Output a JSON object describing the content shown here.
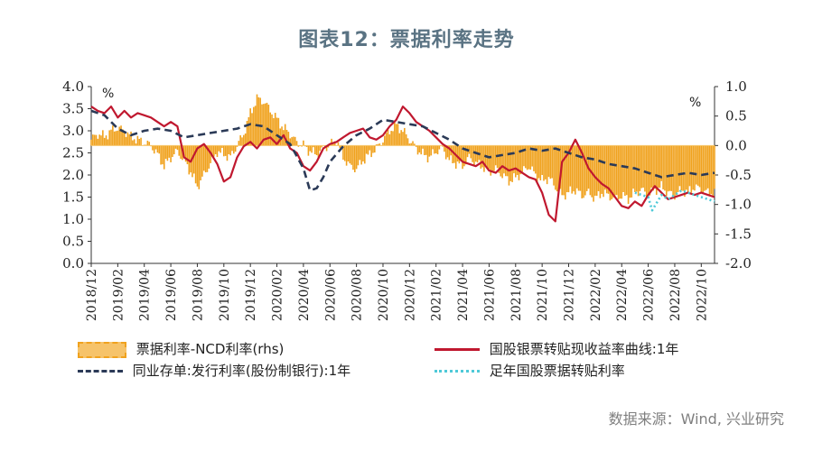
{
  "title": "图表12：票据利率走势",
  "source": "数据来源：Wind, 兴业研究",
  "chart_data": {
    "type": "line",
    "left_axis": {
      "unit": "%",
      "min": 0.0,
      "max": 4.0,
      "ticks": [
        "4.0",
        "3.5",
        "3.0",
        "2.5",
        "2.0",
        "1.5",
        "1.0",
        "0.5",
        "0.0"
      ]
    },
    "right_axis": {
      "unit": "%",
      "min": -2.0,
      "max": 1.0,
      "ticks": [
        "1.0",
        "0.5",
        "0.0",
        "-0.5",
        "-1.0",
        "-1.5",
        "-2.0"
      ]
    },
    "x_axis": {
      "start": "2018/12",
      "end": "2022/11",
      "tick_labels": [
        "2018/12",
        "2019/02",
        "2019/04",
        "2019/06",
        "2019/08",
        "2019/10",
        "2019/12",
        "2020/02",
        "2020/04",
        "2020/06",
        "2020/08",
        "2020/10",
        "2020/12",
        "2021/02",
        "2021/04",
        "2021/06",
        "2021/08",
        "2021/10",
        "2021/12",
        "2022/02",
        "2022/04",
        "2022/06",
        "2022/08",
        "2022/10"
      ]
    },
    "series": [
      {
        "name": "票据利率-NCD利率(rhs)",
        "style": "area",
        "axis": "right",
        "color": "#f0a21e",
        "points": [
          [
            0,
            0.1
          ],
          [
            0.5,
            0.2
          ],
          [
            1,
            0.15
          ],
          [
            1.5,
            0.25
          ],
          [
            2,
            0.3
          ],
          [
            2.5,
            0.25
          ],
          [
            3,
            0.15
          ],
          [
            3.5,
            0.1
          ],
          [
            4,
            0.05
          ],
          [
            4.5,
            0.0
          ],
          [
            5,
            -0.15
          ],
          [
            5.5,
            -0.35
          ],
          [
            6,
            -0.2
          ],
          [
            6.5,
            -0.1
          ],
          [
            7,
            -0.25
          ],
          [
            7.5,
            -0.45
          ],
          [
            8,
            -0.7
          ],
          [
            8.5,
            -0.5
          ],
          [
            9,
            -0.3
          ],
          [
            9.5,
            -0.1
          ],
          [
            10,
            -0.15
          ],
          [
            10.5,
            -0.2
          ],
          [
            11,
            0.0
          ],
          [
            11.5,
            0.2
          ],
          [
            12,
            0.55
          ],
          [
            12.5,
            0.8
          ],
          [
            13,
            0.75
          ],
          [
            13.5,
            0.6
          ],
          [
            14,
            0.45
          ],
          [
            14.5,
            0.3
          ],
          [
            15,
            0.2
          ],
          [
            15.5,
            0.05
          ],
          [
            16,
            0.0
          ],
          [
            16.5,
            -0.1
          ],
          [
            17,
            -0.15
          ],
          [
            17.5,
            -0.05
          ],
          [
            18,
            0.0
          ],
          [
            18.5,
            0.1
          ],
          [
            19,
            -0.2
          ],
          [
            19.5,
            -0.35
          ],
          [
            20,
            -0.4
          ],
          [
            20.5,
            -0.25
          ],
          [
            21,
            -0.15
          ],
          [
            21.5,
            -0.05
          ],
          [
            22,
            0.1
          ],
          [
            22.5,
            0.25
          ],
          [
            23,
            0.35
          ],
          [
            23.5,
            0.25
          ],
          [
            24,
            0.1
          ],
          [
            24.5,
            -0.05
          ],
          [
            25,
            -0.15
          ],
          [
            25.5,
            -0.2
          ],
          [
            26,
            -0.1
          ],
          [
            26.5,
            -0.05
          ],
          [
            27,
            -0.25
          ],
          [
            27.5,
            -0.3
          ],
          [
            28,
            -0.35
          ],
          [
            28.5,
            -0.2
          ],
          [
            29,
            -0.3
          ],
          [
            29.5,
            -0.35
          ],
          [
            30,
            -0.45
          ],
          [
            30.5,
            -0.4
          ],
          [
            31,
            -0.5
          ],
          [
            31.5,
            -0.6
          ],
          [
            32,
            -0.55
          ],
          [
            32.5,
            -0.45
          ],
          [
            33,
            -0.35
          ],
          [
            33.5,
            -0.5
          ],
          [
            34,
            -0.6
          ],
          [
            34.5,
            -0.55
          ],
          [
            35,
            -0.7
          ],
          [
            35.5,
            -0.85
          ],
          [
            36,
            -0.8
          ],
          [
            36.5,
            -0.75
          ],
          [
            37,
            -0.85
          ],
          [
            37.5,
            -0.8
          ],
          [
            38,
            -0.9
          ],
          [
            38.5,
            -0.8
          ],
          [
            39,
            -0.85
          ],
          [
            39.5,
            -0.9
          ],
          [
            40,
            -0.85
          ],
          [
            40.5,
            -0.9
          ],
          [
            41,
            -0.8
          ],
          [
            41.5,
            -0.75
          ],
          [
            42,
            -0.85
          ],
          [
            42.5,
            -0.75
          ],
          [
            43,
            -0.7
          ],
          [
            43.5,
            -0.8
          ],
          [
            44,
            -0.85
          ],
          [
            44.5,
            -0.75
          ],
          [
            45,
            -0.8
          ],
          [
            45.5,
            -0.7
          ],
          [
            46,
            -0.75
          ],
          [
            46.5,
            -0.8
          ],
          [
            47,
            -0.8
          ]
        ]
      },
      {
        "name": "国股银票转贴现收益率曲线:1年",
        "style": "solid",
        "axis": "left",
        "color": "#c0182f",
        "points": [
          [
            0,
            3.55
          ],
          [
            0.5,
            3.45
          ],
          [
            1,
            3.4
          ],
          [
            1.5,
            3.55
          ],
          [
            2,
            3.3
          ],
          [
            2.5,
            3.45
          ],
          [
            3,
            3.3
          ],
          [
            3.5,
            3.4
          ],
          [
            4,
            3.35
          ],
          [
            4.5,
            3.3
          ],
          [
            5,
            3.2
          ],
          [
            5.5,
            3.1
          ],
          [
            6,
            3.2
          ],
          [
            6.5,
            3.1
          ],
          [
            7,
            2.4
          ],
          [
            7.5,
            2.3
          ],
          [
            8,
            2.6
          ],
          [
            8.5,
            2.7
          ],
          [
            9,
            2.5
          ],
          [
            9.5,
            2.25
          ],
          [
            10,
            1.85
          ],
          [
            10.5,
            1.95
          ],
          [
            11,
            2.4
          ],
          [
            11.5,
            2.65
          ],
          [
            12,
            2.75
          ],
          [
            12.5,
            2.6
          ],
          [
            13,
            2.8
          ],
          [
            13.5,
            2.85
          ],
          [
            14,
            2.7
          ],
          [
            14.5,
            2.9
          ],
          [
            15,
            2.6
          ],
          [
            15.5,
            2.5
          ],
          [
            16,
            2.2
          ],
          [
            16.5,
            2.1
          ],
          [
            17,
            2.3
          ],
          [
            17.5,
            2.6
          ],
          [
            18,
            2.7
          ],
          [
            18.5,
            2.75
          ],
          [
            19,
            2.85
          ],
          [
            19.5,
            2.95
          ],
          [
            20,
            3.0
          ],
          [
            20.5,
            3.05
          ],
          [
            21,
            2.85
          ],
          [
            21.5,
            2.8
          ],
          [
            22,
            2.9
          ],
          [
            22.5,
            3.1
          ],
          [
            23,
            3.25
          ],
          [
            23.5,
            3.55
          ],
          [
            24,
            3.4
          ],
          [
            24.5,
            3.2
          ],
          [
            25,
            3.1
          ],
          [
            25.5,
            3.0
          ],
          [
            26,
            2.85
          ],
          [
            26.5,
            2.7
          ],
          [
            27,
            2.6
          ],
          [
            27.5,
            2.45
          ],
          [
            28,
            2.3
          ],
          [
            28.5,
            2.25
          ],
          [
            29,
            2.2
          ],
          [
            29.5,
            2.3
          ],
          [
            30,
            2.1
          ],
          [
            30.5,
            2.05
          ],
          [
            31,
            2.2
          ],
          [
            31.5,
            2.1
          ],
          [
            32,
            2.15
          ],
          [
            32.5,
            2.05
          ],
          [
            33,
            1.95
          ],
          [
            33.5,
            1.9
          ],
          [
            34,
            1.6
          ],
          [
            34.5,
            1.1
          ],
          [
            35,
            0.95
          ],
          [
            35.5,
            2.3
          ],
          [
            36,
            2.5
          ],
          [
            36.5,
            2.8
          ],
          [
            37,
            2.5
          ],
          [
            37.5,
            2.15
          ],
          [
            38,
            1.95
          ],
          [
            38.5,
            1.8
          ],
          [
            39,
            1.7
          ],
          [
            39.5,
            1.5
          ],
          [
            40,
            1.3
          ],
          [
            40.5,
            1.25
          ],
          [
            41,
            1.4
          ],
          [
            41.5,
            1.3
          ],
          [
            42,
            1.55
          ],
          [
            42.5,
            1.75
          ],
          [
            43,
            1.6
          ],
          [
            43.5,
            1.45
          ],
          [
            44,
            1.5
          ],
          [
            44.5,
            1.55
          ],
          [
            45,
            1.6
          ],
          [
            45.5,
            1.55
          ],
          [
            46,
            1.6
          ],
          [
            46.5,
            1.55
          ],
          [
            47,
            1.5
          ]
        ]
      },
      {
        "name": "同业存单:发行利率(股份制银行):1年",
        "style": "dashed",
        "axis": "left",
        "color": "#2b3a57",
        "points": [
          [
            0,
            3.45
          ],
          [
            1,
            3.35
          ],
          [
            2,
            3.05
          ],
          [
            3,
            2.9
          ],
          [
            4,
            3.0
          ],
          [
            5,
            3.05
          ],
          [
            6,
            3.0
          ],
          [
            7,
            2.85
          ],
          [
            8,
            2.9
          ],
          [
            9,
            2.95
          ],
          [
            10,
            3.0
          ],
          [
            11,
            3.05
          ],
          [
            12,
            3.15
          ],
          [
            13,
            3.1
          ],
          [
            14,
            2.9
          ],
          [
            15,
            2.7
          ],
          [
            16,
            2.15
          ],
          [
            16.5,
            1.65
          ],
          [
            17,
            1.7
          ],
          [
            17.5,
            1.95
          ],
          [
            18,
            2.3
          ],
          [
            19,
            2.65
          ],
          [
            20,
            2.9
          ],
          [
            21,
            3.05
          ],
          [
            22,
            3.25
          ],
          [
            23,
            3.2
          ],
          [
            24,
            3.15
          ],
          [
            25,
            3.1
          ],
          [
            26,
            2.95
          ],
          [
            27,
            2.8
          ],
          [
            28,
            2.6
          ],
          [
            29,
            2.5
          ],
          [
            30,
            2.4
          ],
          [
            31,
            2.45
          ],
          [
            32,
            2.5
          ],
          [
            33,
            2.6
          ],
          [
            34,
            2.55
          ],
          [
            35,
            2.6
          ],
          [
            36,
            2.5
          ],
          [
            37,
            2.4
          ],
          [
            38,
            2.35
          ],
          [
            39,
            2.25
          ],
          [
            40,
            2.2
          ],
          [
            41,
            2.15
          ],
          [
            42,
            2.05
          ],
          [
            43,
            1.95
          ],
          [
            44,
            2.0
          ],
          [
            45,
            2.05
          ],
          [
            46,
            2.0
          ],
          [
            47,
            2.05
          ]
        ]
      },
      {
        "name": "足年国股票据转贴利率",
        "style": "dotted",
        "axis": "left",
        "color": "#4ec9d8",
        "points": [
          [
            41,
            1.6
          ],
          [
            41.5,
            1.55
          ],
          [
            42,
            1.5
          ],
          [
            42.3,
            1.2
          ],
          [
            42.6,
            1.35
          ],
          [
            43,
            1.55
          ],
          [
            43.5,
            1.45
          ],
          [
            44,
            1.55
          ],
          [
            44.5,
            1.65
          ],
          [
            45,
            1.6
          ],
          [
            45.5,
            1.55
          ],
          [
            46,
            1.5
          ],
          [
            46.5,
            1.45
          ],
          [
            47,
            1.4
          ]
        ]
      }
    ],
    "legend": [
      {
        "label": "票据利率-NCD利率(rhs)"
      },
      {
        "label": "国股银票转贴现收益率曲线:1年"
      },
      {
        "label": "同业存单:发行利率(股份制银行):1年"
      },
      {
        "label": "足年国股票据转贴利率"
      }
    ]
  }
}
